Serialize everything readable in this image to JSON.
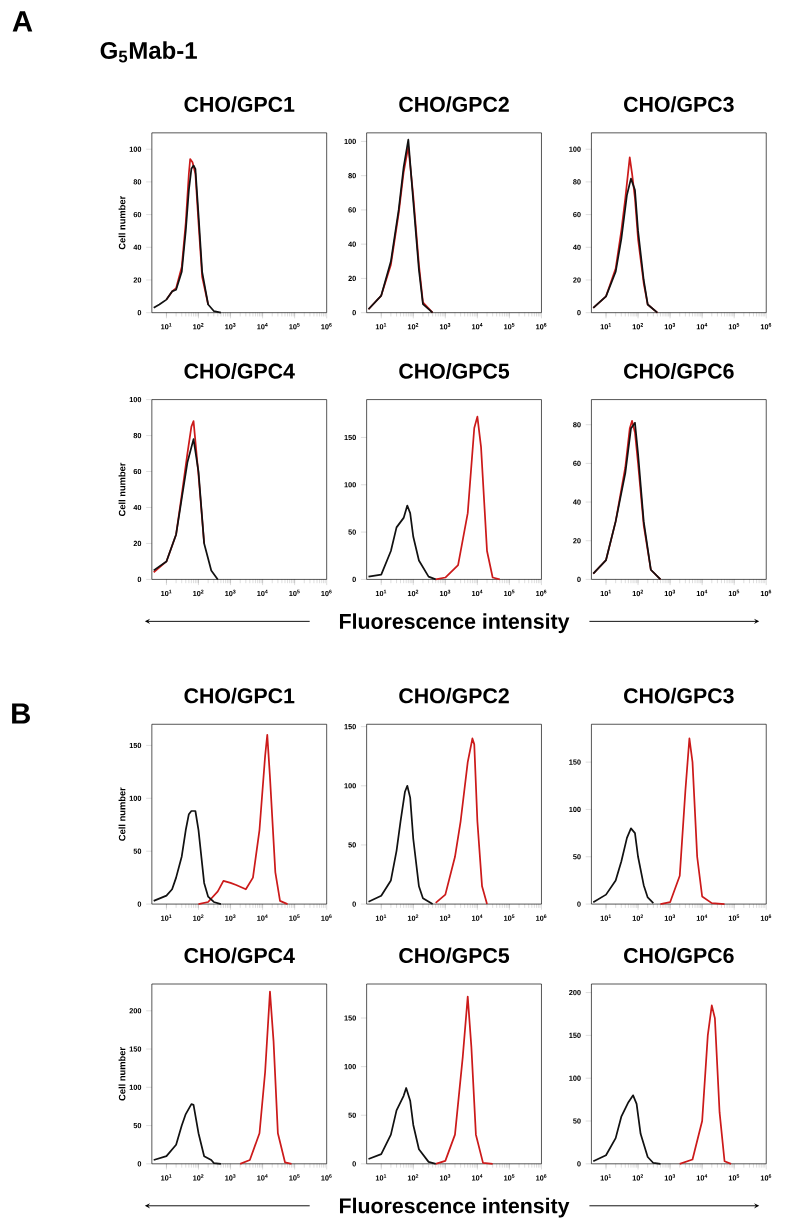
{
  "chart_data": [
    {
      "type": "line",
      "title": "CHO/GPC1",
      "ylabel": "Cell number",
      "annotations": [
        "A",
        "G$_{5}$Mab-1"
      ],
      "log": "x",
      "line_style": "solid",
      "xlim": [
        3.5,
        1000000
      ],
      "xticks": [
        {
          "value": 10,
          "label": "10$^{1}$"
        },
        {
          "value": 100,
          "label": "10$^{2}$"
        },
        {
          "value": 1000,
          "label": "10$^{3}$"
        },
        {
          "value": 10000,
          "label": "10$^{4}$"
        },
        {
          "value": 100000,
          "label": "10$^{5}$"
        },
        {
          "value": 1000000,
          "label": "10$^{6}$"
        }
      ],
      "ylim": [
        0,
        110
      ],
      "yticks": [
        0,
        20,
        40,
        60,
        80,
        100
      ],
      "series": [
        {
          "color": "#cc1a1a",
          "x": [
            10,
            15,
            20,
            30,
            40,
            50,
            55,
            65,
            80,
            100,
            130,
            200
          ],
          "values": [
            8,
            13,
            15,
            28,
            55,
            85,
            94,
            92,
            85,
            55,
            22,
            5
          ]
        },
        {
          "color": "#111111",
          "x": [
            4,
            6,
            10,
            15,
            20,
            30,
            40,
            50,
            60,
            70,
            80,
            100,
            130,
            200,
            300,
            500
          ],
          "values": [
            3,
            5,
            8,
            13,
            14,
            25,
            50,
            75,
            88,
            90,
            88,
            60,
            25,
            5,
            1,
            0
          ]
        }
      ]
    },
    {
      "type": "line",
      "title": "CHO/GPC2",
      "log": "x",
      "line_style": "solid",
      "xlim": [
        3.5,
        1000000
      ],
      "xticks": [
        {
          "value": 10,
          "label": "10$^{1}$"
        },
        {
          "value": 100,
          "label": "10$^{2}$"
        },
        {
          "value": 1000,
          "label": "10$^{3}$"
        },
        {
          "value": 10000,
          "label": "10$^{4}$"
        },
        {
          "value": 100000,
          "label": "10$^{5}$"
        },
        {
          "value": 1000000,
          "label": "10$^{6}$"
        }
      ],
      "ylim": [
        0,
        105
      ],
      "yticks": [
        0,
        20,
        40,
        60,
        80,
        100
      ],
      "series": [
        {
          "color": "#cc1a1a",
          "x": [
            4,
            10,
            20,
            35,
            50,
            70,
            100,
            150,
            200,
            400
          ],
          "values": [
            2,
            10,
            28,
            58,
            82,
            97,
            68,
            28,
            6,
            0
          ]
        },
        {
          "color": "#111111",
          "x": [
            4,
            10,
            20,
            35,
            50,
            70,
            100,
            150,
            200,
            400
          ],
          "values": [
            2,
            10,
            30,
            60,
            85,
            101,
            65,
            25,
            5,
            0
          ]
        }
      ]
    },
    {
      "type": "line",
      "title": "CHO/GPC3",
      "log": "x",
      "line_style": "solid",
      "xlim": [
        3.5,
        1000000
      ],
      "xticks": [
        {
          "value": 10,
          "label": "10$^{1}$"
        },
        {
          "value": 100,
          "label": "10$^{2}$"
        },
        {
          "value": 1000,
          "label": "10$^{3}$"
        },
        {
          "value": 10000,
          "label": "10$^{4}$"
        },
        {
          "value": 100000,
          "label": "10$^{5}$"
        },
        {
          "value": 1000000,
          "label": "10$^{6}$"
        }
      ],
      "ylim": [
        0,
        110
      ],
      "yticks": [
        0,
        20,
        40,
        60,
        80,
        100
      ],
      "series": [
        {
          "color": "#cc1a1a",
          "x": [
            4,
            10,
            20,
            30,
            40,
            55,
            65,
            80,
            100,
            150,
            200,
            400
          ],
          "values": [
            3,
            10,
            27,
            50,
            70,
            95,
            85,
            70,
            45,
            18,
            5,
            0
          ]
        },
        {
          "color": "#111111",
          "x": [
            4,
            10,
            20,
            30,
            45,
            60,
            80,
            100,
            150,
            200,
            400
          ],
          "values": [
            3,
            10,
            25,
            45,
            72,
            82,
            75,
            50,
            20,
            5,
            0
          ]
        }
      ]
    },
    {
      "type": "line",
      "title": "CHO/GPC4",
      "ylabel": "Cell number",
      "log": "x",
      "line_style": "solid",
      "xlim": [
        3.5,
        1000000
      ],
      "xticks": [
        {
          "value": 10,
          "label": "10$^{1}$"
        },
        {
          "value": 100,
          "label": "10$^{2}$"
        },
        {
          "value": 1000,
          "label": "10$^{3}$"
        },
        {
          "value": 10000,
          "label": "10$^{4}$"
        },
        {
          "value": 100000,
          "label": "10$^{5}$"
        },
        {
          "value": 1000000,
          "label": "10$^{6}$"
        }
      ],
      "ylim": [
        0,
        100
      ],
      "yticks": [
        0,
        20,
        40,
        60,
        80,
        100
      ],
      "series": [
        {
          "color": "#cc1a1a",
          "x": [
            4,
            10,
            20,
            30,
            45,
            60,
            70,
            100,
            150
          ],
          "values": [
            4,
            10,
            25,
            47,
            70,
            85,
            88,
            58,
            20
          ]
        },
        {
          "color": "#111111",
          "x": [
            4,
            10,
            20,
            30,
            45,
            70,
            100,
            150,
            250,
            400
          ],
          "values": [
            5,
            10,
            25,
            45,
            65,
            78,
            60,
            20,
            5,
            0
          ]
        }
      ]
    },
    {
      "type": "line",
      "title": "CHO/GPC5",
      "xlabel": "Fluorescence intensity",
      "log": "x",
      "line_style": "solid",
      "xlim": [
        3.5,
        1000000
      ],
      "xticks": [
        {
          "value": 10,
          "label": "10$^{1}$"
        },
        {
          "value": 100,
          "label": "10$^{2}$"
        },
        {
          "value": 1000,
          "label": "10$^{3}$"
        },
        {
          "value": 10000,
          "label": "10$^{4}$"
        },
        {
          "value": 100000,
          "label": "10$^{5}$"
        },
        {
          "value": 1000000,
          "label": "10$^{6}$"
        }
      ],
      "ylim": [
        0,
        190
      ],
      "yticks": [
        0,
        50,
        100,
        150
      ],
      "series": [
        {
          "color": "#cc1a1a",
          "x": [
            500,
            1000,
            2500,
            5000,
            8000,
            10000,
            13000,
            20000,
            30000,
            50000
          ],
          "values": [
            0,
            2,
            15,
            70,
            160,
            172,
            140,
            30,
            2,
            0
          ]
        },
        {
          "color": "#111111",
          "x": [
            4,
            10,
            20,
            30,
            50,
            65,
            80,
            100,
            150,
            300,
            500
          ],
          "values": [
            3,
            5,
            30,
            55,
            65,
            78,
            70,
            45,
            20,
            3,
            0
          ]
        }
      ]
    },
    {
      "type": "line",
      "title": "CHO/GPC6",
      "log": "x",
      "line_style": "solid",
      "xlim": [
        3.5,
        1000000
      ],
      "xticks": [
        {
          "value": 10,
          "label": "10$^{1}$"
        },
        {
          "value": 100,
          "label": "10$^{2}$"
        },
        {
          "value": 1000,
          "label": "10$^{3}$"
        },
        {
          "value": 10000,
          "label": "10$^{4}$"
        },
        {
          "value": 100000,
          "label": "10$^{5}$"
        },
        {
          "value": 1000000,
          "label": "10$^{6}$"
        }
      ],
      "ylim": [
        0,
        93
      ],
      "yticks": [
        0,
        20,
        40,
        60,
        80
      ],
      "series": [
        {
          "color": "#cc1a1a",
          "x": [
            4,
            10,
            20,
            40,
            55,
            65,
            80,
            100,
            150,
            250,
            500
          ],
          "values": [
            3,
            10,
            30,
            58,
            78,
            82,
            76,
            60,
            28,
            5,
            0
          ]
        },
        {
          "color": "#111111",
          "x": [
            4,
            10,
            20,
            40,
            60,
            80,
            100,
            150,
            250,
            500
          ],
          "values": [
            3,
            10,
            30,
            55,
            78,
            81,
            65,
            30,
            5,
            0
          ]
        }
      ]
    },
    {
      "type": "line",
      "title": "CHO/GPC1",
      "ylabel": "Cell number",
      "annotations": [
        "B"
      ],
      "log": "x",
      "line_style": "solid",
      "xlim": [
        3.5,
        1000000
      ],
      "xticks": [
        {
          "value": 10,
          "label": "10$^{1}$"
        },
        {
          "value": 100,
          "label": "10$^{2}$"
        },
        {
          "value": 1000,
          "label": "10$^{3}$"
        },
        {
          "value": 10000,
          "label": "10$^{4}$"
        },
        {
          "value": 100000,
          "label": "10$^{5}$"
        },
        {
          "value": 1000000,
          "label": "10$^{6}$"
        }
      ],
      "ylim": [
        0,
        170
      ],
      "yticks": [
        0,
        50,
        100,
        150
      ],
      "series": [
        {
          "color": "#cc1a1a",
          "x": [
            100,
            200,
            400,
            600,
            1000,
            1500,
            3000,
            5000,
            8000,
            12000,
            14000,
            17000,
            25000,
            35000,
            60000
          ],
          "values": [
            0,
            2,
            12,
            22,
            20,
            18,
            14,
            25,
            70,
            140,
            160,
            120,
            30,
            3,
            0
          ]
        },
        {
          "color": "#111111",
          "x": [
            4,
            10,
            15,
            20,
            30,
            40,
            50,
            60,
            80,
            100,
            150,
            200,
            300,
            500
          ],
          "values": [
            3,
            8,
            14,
            25,
            45,
            70,
            85,
            88,
            88,
            70,
            20,
            7,
            2,
            0
          ]
        }
      ]
    },
    {
      "type": "line",
      "title": "CHO/GPC2",
      "log": "x",
      "line_style": "solid",
      "xlim": [
        3.5,
        1000000
      ],
      "xticks": [
        {
          "value": 10,
          "label": "10$^{1}$"
        },
        {
          "value": 100,
          "label": "10$^{2}$"
        },
        {
          "value": 1000,
          "label": "10$^{3}$"
        },
        {
          "value": 10000,
          "label": "10$^{4}$"
        },
        {
          "value": 100000,
          "label": "10$^{5}$"
        },
        {
          "value": 1000000,
          "label": "10$^{6}$"
        }
      ],
      "ylim": [
        0,
        152
      ],
      "yticks": [
        0,
        50,
        100,
        150
      ],
      "series": [
        {
          "color": "#cc1a1a",
          "x": [
            500,
            1000,
            2000,
            3000,
            5000,
            7000,
            8000,
            10000,
            14000,
            20000
          ],
          "values": [
            1,
            8,
            40,
            70,
            120,
            140,
            135,
            70,
            15,
            0
          ]
        },
        {
          "color": "#111111",
          "x": [
            4,
            10,
            20,
            30,
            40,
            55,
            65,
            80,
            100,
            150,
            200,
            400
          ],
          "values": [
            2,
            7,
            20,
            45,
            70,
            95,
            100,
            90,
            55,
            15,
            5,
            0
          ]
        }
      ]
    },
    {
      "type": "line",
      "title": "CHO/GPC3",
      "log": "x",
      "line_style": "solid",
      "xlim": [
        3.5,
        1000000
      ],
      "xticks": [
        {
          "value": 10,
          "label": "10$^{1}$"
        },
        {
          "value": 100,
          "label": "10$^{2}$"
        },
        {
          "value": 1000,
          "label": "10$^{3}$"
        },
        {
          "value": 10000,
          "label": "10$^{4}$"
        },
        {
          "value": 100000,
          "label": "10$^{5}$"
        },
        {
          "value": 1000000,
          "label": "10$^{6}$"
        }
      ],
      "ylim": [
        0,
        190
      ],
      "yticks": [
        0,
        50,
        100,
        150
      ],
      "series": [
        {
          "color": "#cc1a1a",
          "x": [
            500,
            1000,
            2000,
            3000,
            4000,
            5000,
            7000,
            10000,
            20000,
            50000
          ],
          "values": [
            0,
            2,
            30,
            120,
            175,
            150,
            50,
            8,
            1,
            0
          ]
        },
        {
          "color": "#111111",
          "x": [
            4,
            10,
            20,
            30,
            45,
            60,
            80,
            100,
            150,
            200,
            300
          ],
          "values": [
            2,
            10,
            25,
            45,
            70,
            80,
            75,
            50,
            20,
            7,
            1
          ]
        }
      ]
    },
    {
      "type": "line",
      "title": "CHO/GPC4",
      "ylabel": "Cell number",
      "log": "x",
      "line_style": "solid",
      "xlim": [
        3.5,
        1000000
      ],
      "xticks": [
        {
          "value": 10,
          "label": "10$^{1}$"
        },
        {
          "value": 100,
          "label": "10$^{2}$"
        },
        {
          "value": 1000,
          "label": "10$^{3}$"
        },
        {
          "value": 10000,
          "label": "10$^{4}$"
        },
        {
          "value": 100000,
          "label": "10$^{5}$"
        },
        {
          "value": 1000000,
          "label": "10$^{6}$"
        }
      ],
      "ylim": [
        0,
        235
      ],
      "yticks": [
        0,
        50,
        100,
        150,
        200
      ],
      "series": [
        {
          "color": "#cc1a1a",
          "x": [
            2000,
            4000,
            8000,
            12000,
            17000,
            22000,
            30000,
            50000,
            80000
          ],
          "values": [
            0,
            5,
            40,
            120,
            225,
            160,
            40,
            2,
            0
          ]
        },
        {
          "color": "#111111",
          "x": [
            4,
            10,
            20,
            30,
            40,
            60,
            70,
            100,
            150,
            250,
            300,
            500
          ],
          "values": [
            5,
            10,
            25,
            50,
            65,
            78,
            77,
            40,
            10,
            5,
            1,
            0
          ]
        }
      ]
    },
    {
      "type": "line",
      "title": "CHO/GPC5",
      "xlabel": "Fluorescence intensity",
      "log": "x",
      "line_style": "solid",
      "xlim": [
        3.5,
        1000000
      ],
      "xticks": [
        {
          "value": 10,
          "label": "10$^{1}$"
        },
        {
          "value": 100,
          "label": "10$^{2}$"
        },
        {
          "value": 1000,
          "label": "10$^{3}$"
        },
        {
          "value": 10000,
          "label": "10$^{4}$"
        },
        {
          "value": 100000,
          "label": "10$^{5}$"
        },
        {
          "value": 1000000,
          "label": "10$^{6}$"
        }
      ],
      "ylim": [
        0,
        185
      ],
      "yticks": [
        0,
        50,
        100,
        150
      ],
      "series": [
        {
          "color": "#cc1a1a",
          "x": [
            500,
            1000,
            2000,
            3500,
            5000,
            6500,
            9000,
            15000,
            30000
          ],
          "values": [
            0,
            3,
            30,
            110,
            172,
            120,
            30,
            1,
            0
          ]
        },
        {
          "color": "#111111",
          "x": [
            4,
            10,
            20,
            30,
            50,
            60,
            80,
            100,
            150,
            300,
            500
          ],
          "values": [
            5,
            10,
            30,
            55,
            70,
            78,
            65,
            40,
            15,
            2,
            0
          ]
        }
      ]
    },
    {
      "type": "line",
      "title": "CHO/GPC6",
      "log": "x",
      "line_style": "solid",
      "xlim": [
        3.5,
        1000000
      ],
      "xticks": [
        {
          "value": 10,
          "label": "10$^{1}$"
        },
        {
          "value": 100,
          "label": "10$^{2}$"
        },
        {
          "value": 1000,
          "label": "10$^{3}$"
        },
        {
          "value": 10000,
          "label": "10$^{4}$"
        },
        {
          "value": 100000,
          "label": "10$^{5}$"
        },
        {
          "value": 1000000,
          "label": "10$^{6}$"
        }
      ],
      "ylim": [
        0,
        210
      ],
      "yticks": [
        0,
        50,
        100,
        150,
        200
      ],
      "series": [
        {
          "color": "#cc1a1a",
          "x": [
            2000,
            5000,
            10000,
            15000,
            20000,
            25000,
            35000,
            50000,
            80000
          ],
          "values": [
            0,
            5,
            50,
            150,
            185,
            170,
            60,
            3,
            0
          ]
        },
        {
          "color": "#111111",
          "x": [
            4,
            10,
            20,
            30,
            50,
            70,
            90,
            120,
            200,
            300,
            500
          ],
          "values": [
            3,
            10,
            30,
            55,
            72,
            80,
            70,
            35,
            8,
            1,
            0
          ]
        }
      ]
    }
  ]
}
